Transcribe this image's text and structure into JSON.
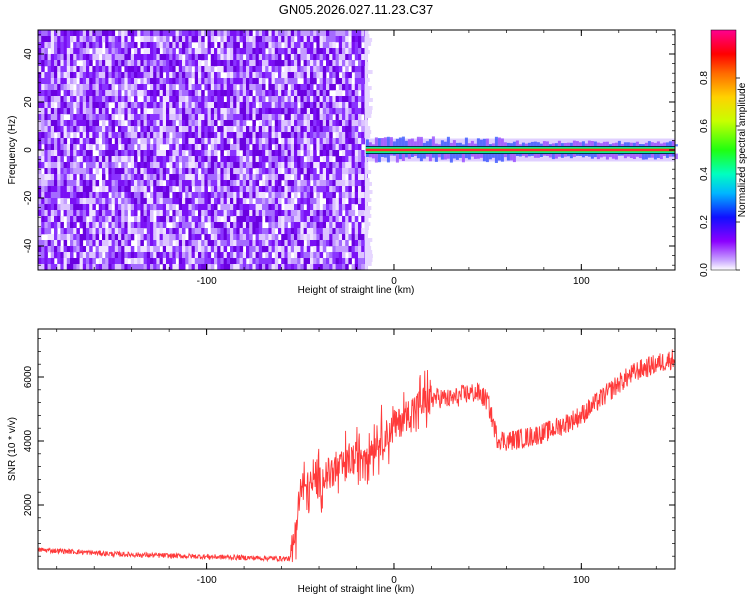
{
  "title": "GN05.2026.027.11.23.C37",
  "chart_data": [
    {
      "type": "heatmap",
      "name": "spectrogram",
      "xlabel": "Height of straight line (km)",
      "ylabel": "Frequency (Hz)",
      "xlim": [
        -190,
        150
      ],
      "ylim": [
        -50,
        50
      ],
      "xticks": [
        -100,
        0,
        100
      ],
      "yticks": [
        -40,
        -20,
        0,
        20,
        40
      ],
      "noise_region_x": [
        -190,
        -15
      ],
      "signal_band": {
        "x_start": -15,
        "x_end": 150,
        "freq_center": 0,
        "freq_halfwidth": 1.5
      },
      "colorbar": {
        "label": "Normalized spectral amplitude",
        "ticks": [
          "0.0",
          "0.2",
          "0.4",
          "0.6",
          "0.8"
        ],
        "range": [
          0,
          1
        ]
      }
    },
    {
      "type": "line",
      "name": "snr",
      "xlabel": "Height of straight line (km)",
      "ylabel": "SNR (10 * v/v)",
      "xlim": [
        -190,
        150
      ],
      "ylim": [
        0,
        7500
      ],
      "xticks": [
        -100,
        0,
        100
      ],
      "yticks": [
        2000,
        4000,
        6000
      ],
      "color": "#ff3a3a",
      "series": [
        {
          "name": "SNR",
          "x": [
            -190,
            -170,
            -150,
            -130,
            -110,
            -90,
            -70,
            -55,
            -52,
            -50,
            -45,
            -40,
            -35,
            -30,
            -25,
            -20,
            -15,
            -10,
            -5,
            0,
            5,
            10,
            15,
            20,
            25,
            30,
            35,
            40,
            45,
            50,
            55,
            60,
            70,
            80,
            90,
            100,
            110,
            120,
            130,
            140,
            150
          ],
          "values": [
            600,
            540,
            470,
            430,
            400,
            370,
            340,
            320,
            1500,
            2400,
            2600,
            2700,
            3000,
            3100,
            3300,
            3500,
            3700,
            3900,
            4150,
            4400,
            4700,
            5000,
            5200,
            5350,
            5350,
            5300,
            5400,
            5500,
            5500,
            5250,
            4100,
            4000,
            4100,
            4250,
            4500,
            4800,
            5300,
            5800,
            6200,
            6400,
            6600
          ]
        }
      ]
    }
  ]
}
